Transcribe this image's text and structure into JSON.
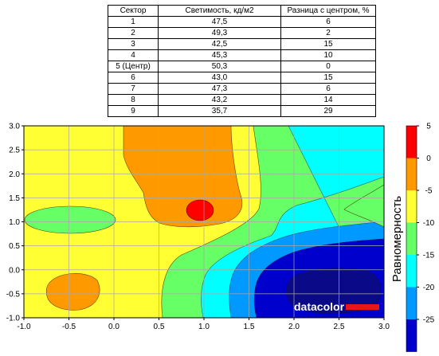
{
  "table": {
    "headers": [
      "Сектор",
      "Светимость, кд/м2",
      "Разница с центром, %"
    ],
    "rows": [
      [
        "1",
        "47,5",
        "6"
      ],
      [
        "2",
        "49,3",
        "2"
      ],
      [
        "3",
        "42,5",
        "15"
      ],
      [
        "4",
        "45,3",
        "10"
      ],
      [
        "5 (Центр)",
        "50,3",
        "0"
      ],
      [
        "6",
        "43,0",
        "15"
      ],
      [
        "7",
        "47,3",
        "6"
      ],
      [
        "8",
        "43,2",
        "14"
      ],
      [
        "9",
        "35,7",
        "29"
      ]
    ]
  },
  "brand": "datacolor",
  "chart_data": {
    "type": "heatmap",
    "title": "",
    "xlabel": "",
    "ylabel": "",
    "xlim": [
      -1.0,
      3.0
    ],
    "ylim": [
      -1.0,
      3.0
    ],
    "x_ticks": [
      "-1.0",
      "-0.5",
      "0.0",
      "0.5",
      "1.0",
      "1.5",
      "2.0",
      "2.5",
      "3.0"
    ],
    "y_ticks": [
      "3.0",
      "2.5",
      "2.0",
      "1.5",
      "1.0",
      "0.5",
      "0.0",
      "-0.5",
      "-1.0"
    ],
    "grid": true,
    "colorbar": {
      "label": "Равномерность",
      "ticks": [
        "5",
        "0",
        "-5",
        "-10",
        "-15",
        "-20",
        "-25"
      ],
      "levels": [
        {
          "from": 0,
          "to": 5,
          "color": "#ff0000"
        },
        {
          "from": -5,
          "to": 0,
          "color": "#ff9900"
        },
        {
          "from": -10,
          "to": -5,
          "color": "#ffff33"
        },
        {
          "from": -15,
          "to": -10,
          "color": "#66ff66"
        },
        {
          "from": -20,
          "to": -15,
          "color": "#00ffff"
        },
        {
          "from": -25,
          "to": -20,
          "color": "#0099ff"
        },
        {
          "from": -30,
          "to": -25,
          "color": "#0000cc"
        }
      ]
    },
    "sectors": [
      {
        "sector": "1",
        "x": -0.5,
        "y": 1.0,
        "luminance": 47.5,
        "diff_pct": 6
      },
      {
        "sector": "2",
        "x": 0.5,
        "y": 2.5,
        "luminance": 49.3,
        "diff_pct": 2
      },
      {
        "sector": "3",
        "x": 2.5,
        "y": 2.5,
        "luminance": 42.5,
        "diff_pct": 15
      },
      {
        "sector": "4",
        "x": -0.5,
        "y": -0.5,
        "luminance": 45.3,
        "diff_pct": 10
      },
      {
        "sector": "5 (Центр)",
        "x": 1.0,
        "y": 1.25,
        "luminance": 50.3,
        "diff_pct": 0
      },
      {
        "sector": "6",
        "x": 2.5,
        "y": 1.0,
        "luminance": 43.0,
        "diff_pct": 15
      },
      {
        "sector": "7",
        "x": 1.0,
        "y": 0.0,
        "luminance": 47.3,
        "diff_pct": 6
      },
      {
        "sector": "8",
        "x": 1.5,
        "y": 0.0,
        "luminance": 43.2,
        "diff_pct": 14
      },
      {
        "sector": "9",
        "x": 2.5,
        "y": -0.5,
        "luminance": 35.7,
        "diff_pct": 29
      }
    ]
  }
}
